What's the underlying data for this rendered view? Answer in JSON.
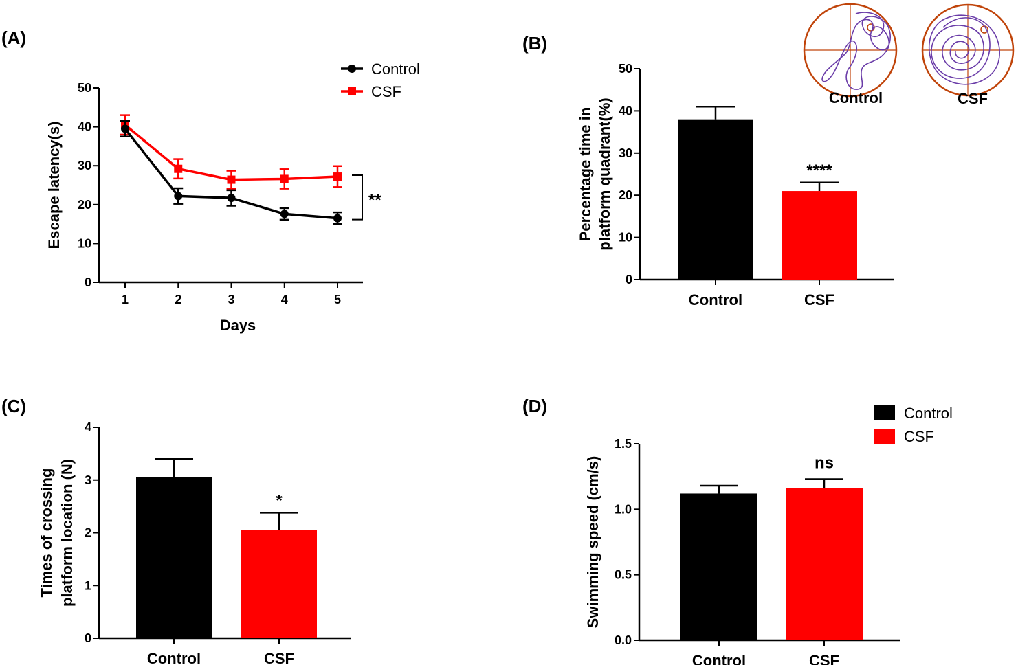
{
  "panels": {
    "a": {
      "label": "(A)"
    },
    "b": {
      "label": "(B)"
    },
    "c": {
      "label": "(C)"
    },
    "d": {
      "label": "(D)"
    }
  },
  "inset": {
    "control_label": "Control",
    "csf_label": "CSF",
    "ring_color": "#c0440a",
    "track_color": "#6a3ca8"
  },
  "colors": {
    "control": "#000000",
    "csf": "#ff0000"
  },
  "chart_data": [
    {
      "id": "A",
      "type": "line",
      "title": "",
      "xlabel": "Days",
      "ylabel": "Escape latency(s)",
      "x": [
        1,
        2,
        3,
        4,
        5
      ],
      "ylim": [
        0,
        50
      ],
      "yticks": [
        0,
        10,
        20,
        30,
        40,
        50
      ],
      "series": [
        {
          "name": "Control",
          "values": [
            39.5,
            22.2,
            21.7,
            17.6,
            16.5
          ],
          "errors": [
            2.0,
            2.0,
            2.0,
            1.5,
            1.5
          ],
          "marker": "circle"
        },
        {
          "name": "CSF",
          "values": [
            40.5,
            29.2,
            26.4,
            26.6,
            27.2
          ],
          "errors": [
            2.5,
            2.5,
            2.3,
            2.5,
            2.7
          ],
          "marker": "square"
        }
      ],
      "annotation": "**",
      "legend": "top-right"
    },
    {
      "id": "B",
      "type": "bar",
      "title": "",
      "xlabel": "",
      "ylabel_lines": [
        "Percentage time in",
        "platform quadrant(%)"
      ],
      "categories": [
        "Control",
        "CSF"
      ],
      "values": [
        38,
        21
      ],
      "errors": [
        3,
        2
      ],
      "ylim": [
        0,
        50
      ],
      "yticks": [
        0,
        10,
        20,
        30,
        40,
        50
      ],
      "significance": [
        "",
        "****"
      ]
    },
    {
      "id": "C",
      "type": "bar",
      "title": "",
      "xlabel": "",
      "ylabel_lines": [
        "Times of crossing",
        "platform location (N)"
      ],
      "categories": [
        "Control",
        "CSF"
      ],
      "values": [
        3.05,
        2.05
      ],
      "errors": [
        0.35,
        0.33
      ],
      "ylim": [
        0,
        4
      ],
      "yticks": [
        0,
        1,
        2,
        3,
        4
      ],
      "significance": [
        "",
        "*"
      ]
    },
    {
      "id": "D",
      "type": "bar",
      "title": "",
      "xlabel": "",
      "ylabel_lines": [
        "Swimming speed (cm/s)"
      ],
      "categories": [
        "Control",
        "CSF"
      ],
      "values": [
        1.12,
        1.16
      ],
      "errors": [
        0.06,
        0.07
      ],
      "ylim": [
        0,
        1.5
      ],
      "yticks": [
        "0.0",
        "0.5",
        "1.0",
        "1.5"
      ],
      "significance": [
        "",
        "ns"
      ],
      "legend_entries": [
        "Control",
        "CSF"
      ],
      "legend": "top-right"
    }
  ]
}
